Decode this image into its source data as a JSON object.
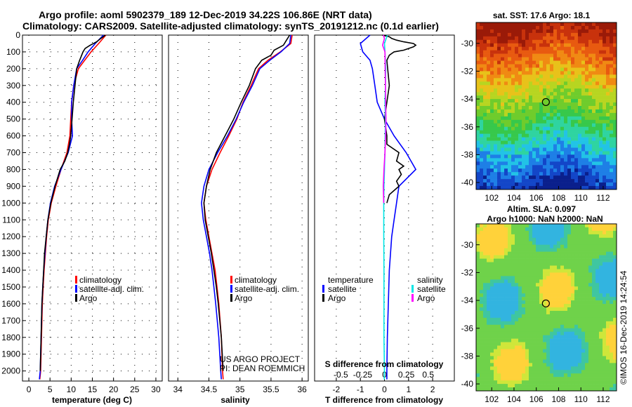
{
  "header": {
    "line1": "Argo profile: aoml 5902379_189 12-Dec-2019 34.22S 106.86E (NRT data)",
    "line2": "Climatology: CARS2009. Satellite-adjusted climatology: synTS_20191212.nc (0.1d earlier)"
  },
  "chart_data": [
    {
      "type": "line",
      "id": "temperature",
      "xlabel": "temperature (deg C)",
      "ylabel": "",
      "xlim": [
        -1.5,
        31.5
      ],
      "ylim": [
        2060,
        0
      ],
      "xticks": [
        "0",
        "5",
        "10",
        "15",
        "20",
        "25",
        "30"
      ],
      "yticks": [
        "0",
        "100",
        "200",
        "300",
        "400",
        "500",
        "600",
        "700",
        "800",
        "900",
        "1000",
        "1100",
        "1200",
        "1300",
        "1400",
        "1500",
        "1600",
        "1700",
        "1800",
        "1900",
        "2000"
      ],
      "legend": [
        "climatology",
        "satellite-adj. clim.",
        "Argo"
      ],
      "series": [
        {
          "name": "climatology",
          "color": "#ff0000",
          "x": [
            18.2,
            16.5,
            14.7,
            13.2,
            11.7,
            10.6,
            10.1,
            9.9,
            9.7,
            9.0,
            7.6,
            6.4,
            5.3,
            4.6,
            4.2,
            3.9,
            3.6,
            3.4,
            3.2,
            3.0,
            2.8,
            2.6
          ],
          "y": [
            0,
            50,
            100,
            150,
            200,
            300,
            400,
            500,
            600,
            700,
            800,
            900,
            1000,
            1100,
            1200,
            1300,
            1400,
            1500,
            1600,
            1800,
            2000,
            2050
          ]
        },
        {
          "name": "satellite-adj. clim.",
          "color": "#0000ff",
          "x": [
            17.6,
            15.7,
            14.0,
            12.7,
            11.3,
            10.6,
            10.1,
            10.1,
            10.3,
            9.3,
            7.6,
            6.1,
            5.1,
            4.5,
            4.1,
            3.8,
            3.5,
            3.3,
            3.1,
            2.9,
            2.7,
            2.5
          ],
          "y": [
            0,
            50,
            100,
            150,
            200,
            300,
            400,
            500,
            600,
            700,
            800,
            900,
            1000,
            1100,
            1200,
            1300,
            1400,
            1500,
            1600,
            1800,
            2000,
            2050
          ]
        },
        {
          "name": "Argo",
          "color": "#000000",
          "x": [
            18.1,
            17.0,
            16.0,
            14.5,
            13.3,
            12.8,
            12.0,
            11.3,
            10.9,
            10.5,
            10.2,
            9.9,
            9.6,
            9.2,
            8.5,
            7.4,
            6.2,
            5.2,
            4.5,
            4.1,
            3.7,
            3.5,
            3.3,
            3.1,
            2.9,
            2.7
          ],
          "y": [
            0,
            20,
            40,
            60,
            80,
            100,
            150,
            200,
            300,
            400,
            500,
            600,
            650,
            700,
            750,
            800,
            900,
            1000,
            1100,
            1200,
            1300,
            1400,
            1500,
            1600,
            1800,
            2000
          ]
        }
      ]
    },
    {
      "type": "line",
      "id": "salinity",
      "xlabel": "salinity",
      "xlim": [
        33.85,
        36.1
      ],
      "ylim": [
        2060,
        0
      ],
      "xticks": [
        "34",
        "34.5",
        "35",
        "35.5",
        "36"
      ],
      "legend": [
        "climatology",
        "satellite-adj. clim.",
        "Argo"
      ],
      "annotations": [
        "US ARGO PROJECT",
        "PI: DEAN ROEMMICH"
      ],
      "series": [
        {
          "name": "climatology",
          "color": "#ff0000",
          "x": [
            35.84,
            35.82,
            35.65,
            35.45,
            35.3,
            35.18,
            35.05,
            34.95,
            34.82,
            34.68,
            34.55,
            34.46,
            34.42,
            34.45,
            34.5,
            34.55,
            34.6,
            34.63,
            34.66,
            34.7,
            34.72,
            34.73
          ],
          "y": [
            0,
            50,
            100,
            150,
            200,
            300,
            400,
            500,
            600,
            700,
            800,
            900,
            1000,
            1100,
            1200,
            1300,
            1400,
            1500,
            1600,
            1800,
            2000,
            2050
          ]
        },
        {
          "name": "satellite-adj. clim.",
          "color": "#0000ff",
          "x": [
            35.82,
            35.8,
            35.66,
            35.48,
            35.32,
            35.2,
            35.06,
            34.94,
            34.8,
            34.64,
            34.5,
            34.42,
            34.38,
            34.41,
            34.46,
            34.51,
            34.55,
            34.58,
            34.61,
            34.66,
            34.69,
            34.7
          ],
          "y": [
            0,
            50,
            100,
            150,
            200,
            300,
            400,
            500,
            600,
            700,
            800,
            900,
            1000,
            1100,
            1200,
            1300,
            1400,
            1500,
            1600,
            1800,
            2000,
            2050
          ]
        },
        {
          "name": "Argo",
          "color": "#000000",
          "x": [
            35.8,
            35.75,
            35.7,
            35.55,
            35.5,
            35.35,
            35.25,
            35.15,
            35.02,
            34.9,
            34.76,
            34.62,
            34.52,
            34.46,
            34.42,
            34.44,
            34.49,
            34.54,
            34.58,
            34.62,
            34.65,
            34.7,
            34.73
          ],
          "y": [
            0,
            30,
            60,
            90,
            120,
            150,
            200,
            300,
            400,
            500,
            600,
            700,
            800,
            900,
            1000,
            1100,
            1200,
            1300,
            1400,
            1500,
            1600,
            1800,
            2000
          ]
        }
      ]
    },
    {
      "type": "line",
      "id": "differences",
      "xlabel": "T difference from climatology",
      "xlabel_top": "S difference from climatology",
      "xlim": [
        -2.9,
        2.9
      ],
      "ylim": [
        2060,
        0
      ],
      "xticks": [
        "-2",
        "-1",
        "0",
        "1",
        "2"
      ],
      "xticks_s": [
        "-0.5",
        "-0.25",
        "0",
        "0.25",
        "0.5"
      ],
      "legend_left": [
        "temperature",
        "satellite",
        "Argo"
      ],
      "legend_right": [
        "salinity",
        "satellite",
        "Argo"
      ],
      "series": [
        {
          "name": "temperature satellite",
          "color": "#0000ff",
          "x": [
            -0.6,
            -1.0,
            -0.9,
            -0.6,
            -0.5,
            -0.4,
            -0.3,
            0.0,
            0.4,
            0.9,
            1.3,
            0.6,
            0.5,
            0.4,
            0.3,
            0.25,
            0.2,
            0.18,
            0.16,
            0.14,
            0.12,
            0.1,
            0.1
          ],
          "y": [
            0,
            50,
            100,
            150,
            200,
            300,
            400,
            500,
            600,
            700,
            800,
            900,
            1000,
            1100,
            1200,
            1300,
            1400,
            1500,
            1600,
            1700,
            1800,
            2000,
            2050
          ]
        },
        {
          "name": "temperature Argo",
          "color": "#000000",
          "x": [
            -0.1,
            0.2,
            0.3,
            0.5,
            0.8,
            1.2,
            1.3,
            1.2,
            1.0,
            0.8,
            0.4,
            0.2,
            0.1,
            0.2,
            0.1,
            0.0,
            0.1,
            0.1,
            0.6,
            0.5,
            0.8,
            0.6,
            0.7,
            0.5,
            0.6,
            0.2,
            0.1
          ],
          "y": [
            0,
            10,
            20,
            30,
            40,
            50,
            60,
            70,
            80,
            90,
            100,
            120,
            150,
            300,
            400,
            500,
            600,
            650,
            700,
            750,
            780,
            800,
            830,
            870,
            900,
            950,
            1000
          ]
        },
        {
          "name": "salinity satellite",
          "color": "#00e6e6",
          "x": [
            0.12,
            0.0,
            0.02,
            0.05,
            0.04,
            0.02,
            0.04,
            0.03,
            0.02,
            0.0,
            -0.02,
            -0.03,
            -0.03,
            -0.02,
            -0.02,
            -0.02,
            0.0,
            -0.01
          ],
          "y": [
            0,
            50,
            100,
            200,
            300,
            400,
            500,
            600,
            700,
            800,
            900,
            1000,
            1200,
            1400,
            1600,
            1800,
            2000,
            2050
          ]
        },
        {
          "name": "salinity Argo",
          "color": "#ff00ff",
          "x": [
            -0.05,
            0.0,
            -0.04,
            -0.08,
            -0.03,
            0.02,
            0.03,
            0.04,
            0.05,
            0.06,
            0.05,
            0.02,
            -0.02,
            -0.05,
            -0.03
          ],
          "y": [
            0,
            20,
            40,
            60,
            80,
            100,
            200,
            300,
            400,
            500,
            600,
            700,
            800,
            900,
            1000
          ]
        }
      ]
    },
    {
      "type": "heatmap",
      "id": "sst_map",
      "title": "sat. SST: 17.6 Argo: 18.1",
      "xticks": [
        "102",
        "104",
        "106",
        "108",
        "110",
        "112"
      ],
      "yticks": [
        "-30",
        "-32",
        "-34",
        "-36",
        "-38",
        "-40"
      ],
      "xlim": [
        100.6,
        113.2
      ],
      "ylim": [
        -40.5,
        -28.5
      ],
      "marker": {
        "lon": 106.86,
        "lat": -34.22
      }
    },
    {
      "type": "heatmap",
      "id": "sla_map",
      "title": "Altim. SLA: 0.097",
      "subtitle": "Argo h1000: NaN h2000: NaN",
      "xticks": [
        "102",
        "104",
        "106",
        "108",
        "110",
        "112"
      ],
      "yticks": [
        "-30",
        "-32",
        "-34",
        "-36",
        "-38",
        "-40"
      ],
      "xlim": [
        100.6,
        113.2
      ],
      "ylim": [
        -40.5,
        -28.5
      ],
      "marker": {
        "lon": 106.86,
        "lat": -34.22
      }
    }
  ],
  "watermark": "©IMOS 16-Dec-2019 14:24:54"
}
